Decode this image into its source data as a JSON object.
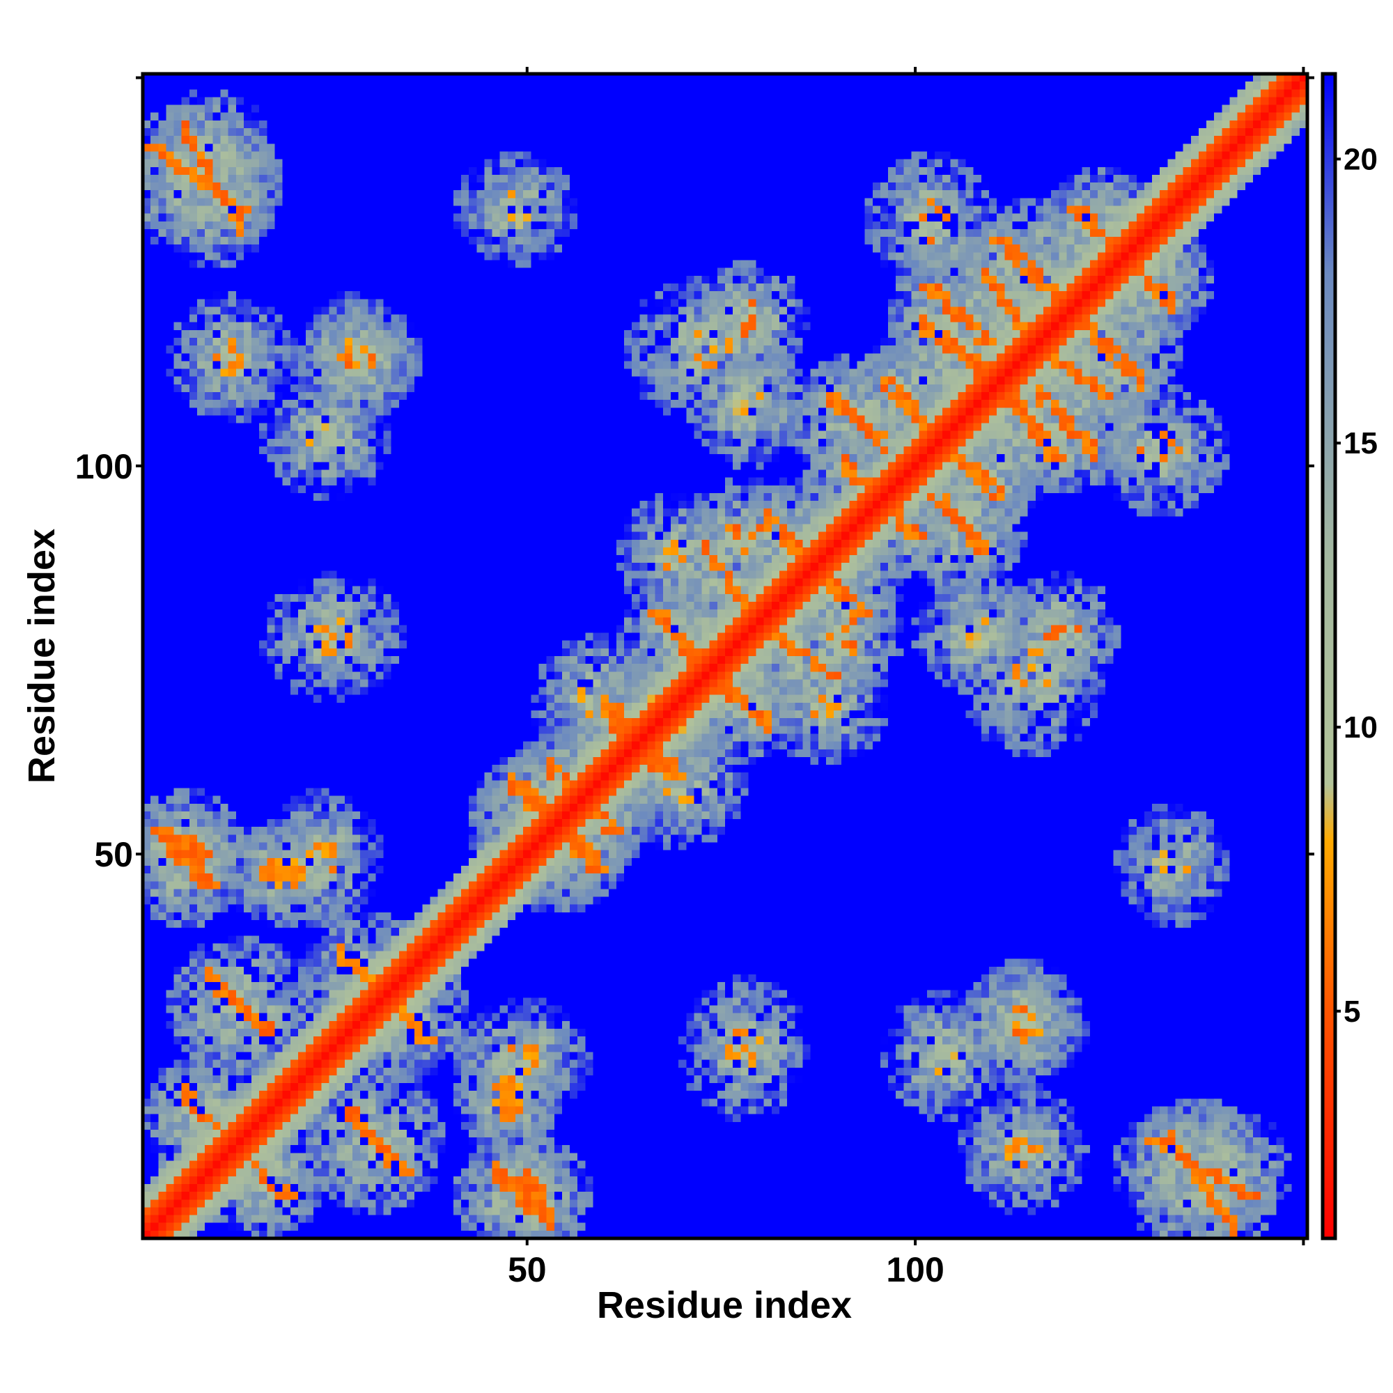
{
  "chart_data": {
    "type": "heatmap",
    "title": "",
    "xlabel": "Residue index",
    "ylabel": "Residue index",
    "n_residues": 150,
    "xlim": [
      1,
      150
    ],
    "ylim": [
      1,
      150
    ],
    "x_ticks": [
      50,
      100
    ],
    "x_tick_labels": [
      "50",
      "100"
    ],
    "y_ticks": [
      50,
      100
    ],
    "y_tick_labels": [
      "50",
      "100"
    ],
    "colorbar": {
      "range": [
        1,
        21.5
      ],
      "ticks": [
        5,
        10,
        15,
        20
      ],
      "tick_labels": [
        "5",
        "10",
        "15",
        "20"
      ],
      "colormap": [
        {
          "value": 1,
          "color": "#ff0000"
        },
        {
          "value": 5,
          "color": "#ff5500"
        },
        {
          "value": 8,
          "color": "#ffaa00"
        },
        {
          "value": 9,
          "color": "#b3c49a"
        },
        {
          "value": 13,
          "color": "#a4b8a0"
        },
        {
          "value": 18,
          "color": "#6b89c0"
        },
        {
          "value": 21.5,
          "color": "#0000ff"
        }
      ]
    },
    "description_of_values": "Symmetric residue-residue distance map; diagonal ~2, contact patches 4-12, background saturated at max (blue).",
    "contact_patches": [
      {
        "i": [
          5,
          12
        ],
        "j": [
          130,
          142
        ],
        "kind": "antiparallel",
        "min": 5
      },
      {
        "i": [
          3,
          8
        ],
        "j": [
          48,
          50
        ],
        "kind": "point",
        "min": 5
      },
      {
        "i": [
          15,
          20
        ],
        "j": [
          45,
          48
        ],
        "kind": "point",
        "min": 6
      },
      {
        "i": [
          20,
          28
        ],
        "j": [
          74,
          80
        ],
        "kind": "block",
        "min": 6
      },
      {
        "i": [
          25,
          30
        ],
        "j": [
          110,
          115
        ],
        "kind": "block",
        "min": 5
      },
      {
        "i": [
          20,
          26
        ],
        "j": [
          100,
          105
        ],
        "kind": "block",
        "min": 7
      },
      {
        "i": [
          8,
          16
        ],
        "j": [
          26,
          33
        ],
        "kind": "antiparallel",
        "min": 5
      },
      {
        "i": [
          5,
          10
        ],
        "j": [
          12,
          18
        ],
        "kind": "antiparallel",
        "min": 5
      },
      {
        "i": [
          25,
          32
        ],
        "j": [
          30,
          36
        ],
        "kind": "antiparallel",
        "min": 6
      },
      {
        "i": [
          45,
          52
        ],
        "j": [
          2,
          8
        ],
        "kind": "antiparallel",
        "min": 5
      },
      {
        "i": [
          45,
          52
        ],
        "j": [
          20,
          25
        ],
        "kind": "block",
        "min": 6
      },
      {
        "i": [
          47,
          58
        ],
        "j": [
          48,
          58
        ],
        "kind": "antiparallel",
        "min": 5
      },
      {
        "i": [
          52,
          58
        ],
        "j": [
          56,
          60
        ],
        "kind": "antiparallel",
        "min": 5
      },
      {
        "i": [
          60,
          68
        ],
        "j": [
          60,
          66
        ],
        "kind": "antiparallel",
        "min": 5
      },
      {
        "i": [
          65,
          72
        ],
        "j": [
          55,
          60
        ],
        "kind": "block",
        "min": 7
      },
      {
        "i": [
          64,
          70
        ],
        "j": [
          64,
          68
        ],
        "kind": "block",
        "min": 7
      },
      {
        "i": [
          70,
          80
        ],
        "j": [
          66,
          74
        ],
        "kind": "antiparallel",
        "min": 5
      },
      {
        "i": [
          72,
          78
        ],
        "j": [
          80,
          88
        ],
        "kind": "antiparallel",
        "min": 5
      },
      {
        "i": [
          74,
          80
        ],
        "j": [
          88,
          92
        ],
        "kind": "block",
        "min": 5
      },
      {
        "i": [
          75,
          80
        ],
        "j": [
          116,
          120
        ],
        "kind": "block",
        "min": 5
      },
      {
        "i": [
          75,
          80
        ],
        "j": [
          104,
          110
        ],
        "kind": "block",
        "min": 7
      },
      {
        "i": [
          80,
          87
        ],
        "j": [
          85,
          92
        ],
        "kind": "antiparallel",
        "min": 5
      },
      {
        "i": [
          85,
          90
        ],
        "j": [
          66,
          70
        ],
        "kind": "block",
        "min": 6
      },
      {
        "i": [
          88,
          95
        ],
        "j": [
          102,
          108
        ],
        "kind": "antiparallel",
        "min": 5
      },
      {
        "i": [
          90,
          96
        ],
        "j": [
          93,
          99
        ],
        "kind": "antiparallel",
        "min": 5
      },
      {
        "i": [
          95,
          102
        ],
        "j": [
          103,
          110
        ],
        "kind": "antiparallel",
        "min": 5
      },
      {
        "i": [
          98,
          104
        ],
        "j": [
          127,
          134
        ],
        "kind": "block",
        "min": 5
      },
      {
        "i": [
          100,
          110
        ],
        "j": [
          110,
          117
        ],
        "kind": "antiparallel",
        "min": 5
      },
      {
        "i": [
          108,
          114
        ],
        "j": [
          115,
          124
        ],
        "kind": "antiparallel",
        "min": 5
      },
      {
        "i": [
          110,
          116
        ],
        "j": [
          8,
          14
        ],
        "kind": "block",
        "min": 6
      },
      {
        "i": [
          110,
          116
        ],
        "j": [
          24,
          30
        ],
        "kind": "block",
        "min": 6
      },
      {
        "i": [
          110,
          118
        ],
        "j": [
          67,
          78
        ],
        "kind": "block",
        "min": 6
      },
      {
        "i": [
          115,
          122
        ],
        "j": [
          101,
          108
        ],
        "kind": "antiparallel",
        "min": 5
      },
      {
        "i": [
          120,
          128
        ],
        "j": [
          110,
          118
        ],
        "kind": "antiparallel",
        "min": 5
      },
      {
        "i": [
          125,
          132
        ],
        "j": [
          120,
          126
        ],
        "kind": "antiparallel",
        "min": 5
      },
      {
        "i": [
          130,
          134
        ],
        "j": [
          45,
          50
        ],
        "kind": "block",
        "min": 7
      },
      {
        "i": [
          132,
          140
        ],
        "j": [
          1,
          12
        ],
        "kind": "antiparallel",
        "min": 5
      }
    ]
  },
  "axes": {
    "x_title": "Residue index",
    "y_title": "Residue index"
  }
}
